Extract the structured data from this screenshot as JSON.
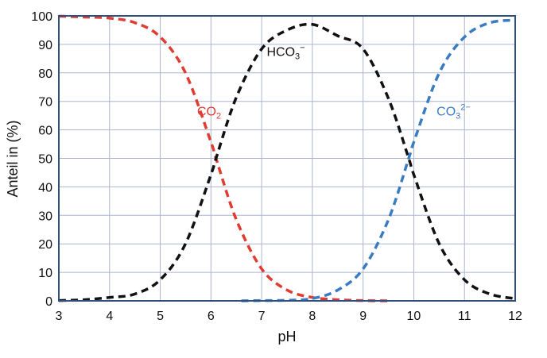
{
  "chart_data": {
    "type": "line",
    "title": "",
    "xlabel": "pH",
    "ylabel": "Anteil in (%)",
    "xlim": [
      3,
      12
    ],
    "ylim": [
      0,
      100
    ],
    "xticks": [
      "3",
      "4",
      "5",
      "6",
      "7",
      "8",
      "9",
      "10",
      "11",
      "12"
    ],
    "yticks": [
      "0",
      "10",
      "20",
      "30",
      "40",
      "50",
      "60",
      "70",
      "80",
      "90",
      "100"
    ],
    "grid": true,
    "line_style": "dashed",
    "x": [
      3,
      3.5,
      4,
      4.5,
      5,
      5.5,
      6,
      6.1,
      6.5,
      7,
      7.5,
      8,
      8.5,
      9,
      9.5,
      9.9,
      10,
      10.5,
      11,
      11.5,
      12
    ],
    "series": [
      {
        "name": "CO₂",
        "label_base": "CO",
        "label_sub": "2",
        "label_sup": "",
        "color": "#e03c31",
        "x": [
          3,
          3.5,
          4,
          4.5,
          5,
          5.5,
          6,
          6.1,
          6.5,
          7,
          7.5,
          8,
          8.5,
          9,
          9.5
        ],
        "values": [
          99.9,
          99.6,
          99.2,
          97.6,
          92.6,
          79.9,
          55.7,
          50,
          28.5,
          11.2,
          3.8,
          1.2,
          0.4,
          0.1,
          0
        ]
      },
      {
        "name": "HCO₃⁻",
        "label_base": "HCO",
        "label_sub": "3",
        "label_sup": "−",
        "color": "#111111",
        "x": [
          3,
          3.5,
          4,
          4.5,
          5,
          5.5,
          6,
          6.1,
          6.5,
          7,
          7.5,
          8,
          8.5,
          9,
          9.5,
          9.9,
          10,
          10.5,
          11,
          11.5,
          12
        ],
        "values": [
          0.1,
          0.4,
          1.2,
          2.4,
          7.4,
          20.1,
          44.3,
          50,
          71.4,
          88.4,
          95,
          97,
          93,
          88.4,
          71,
          50,
          44.3,
          20.1,
          7.4,
          2.4,
          0.8
        ]
      },
      {
        "name": "CO₃²⁻",
        "label_base": "CO",
        "label_sub": "3",
        "label_sup": "2−",
        "color": "#3a7cc2",
        "x": [
          6.6,
          7,
          7.5,
          8,
          8.5,
          9,
          9.5,
          9.9,
          10,
          10.5,
          11,
          11.5,
          12
        ],
        "values": [
          0,
          0.1,
          0.2,
          0.8,
          3.8,
          11.2,
          28.5,
          50,
          55.7,
          79.9,
          92.6,
          97.6,
          98.5
        ]
      }
    ]
  }
}
